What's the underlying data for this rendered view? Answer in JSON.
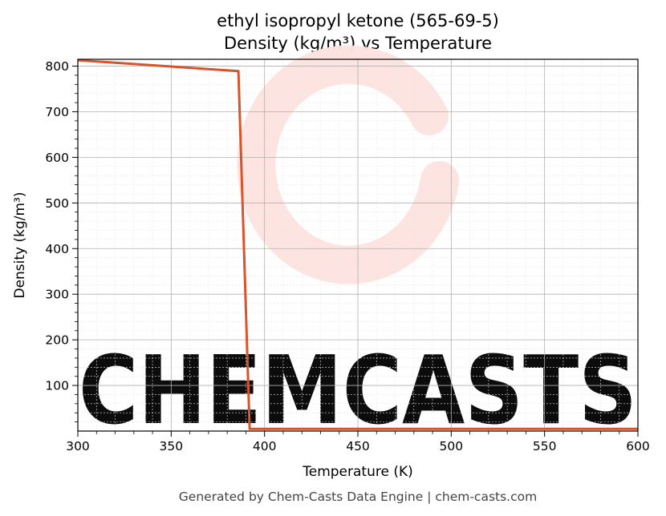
{
  "chart_data": {
    "type": "line",
    "title_line1": "ethyl isopropyl ketone (565-69-5)",
    "title_line2": "Density (kg/m³) vs Temperature",
    "xlabel": "Temperature (K)",
    "ylabel": "Density (kg/m³)",
    "xlim": [
      300,
      600
    ],
    "ylim": [
      0,
      815
    ],
    "xticks": [
      300,
      350,
      400,
      450,
      500,
      550,
      600
    ],
    "yticks": [
      100,
      200,
      300,
      400,
      500,
      600,
      700,
      800
    ],
    "grid": true,
    "series": [
      {
        "color": "#d9532b",
        "x": [
          300,
          386,
          392,
          600
        ],
        "y": [
          813,
          789,
          5,
          5
        ]
      }
    ]
  },
  "watermark": {
    "text": "CHEMCASTS",
    "color": "#fde3de"
  },
  "footer": "Generated by Chem-Casts Data Engine | chem-casts.com"
}
